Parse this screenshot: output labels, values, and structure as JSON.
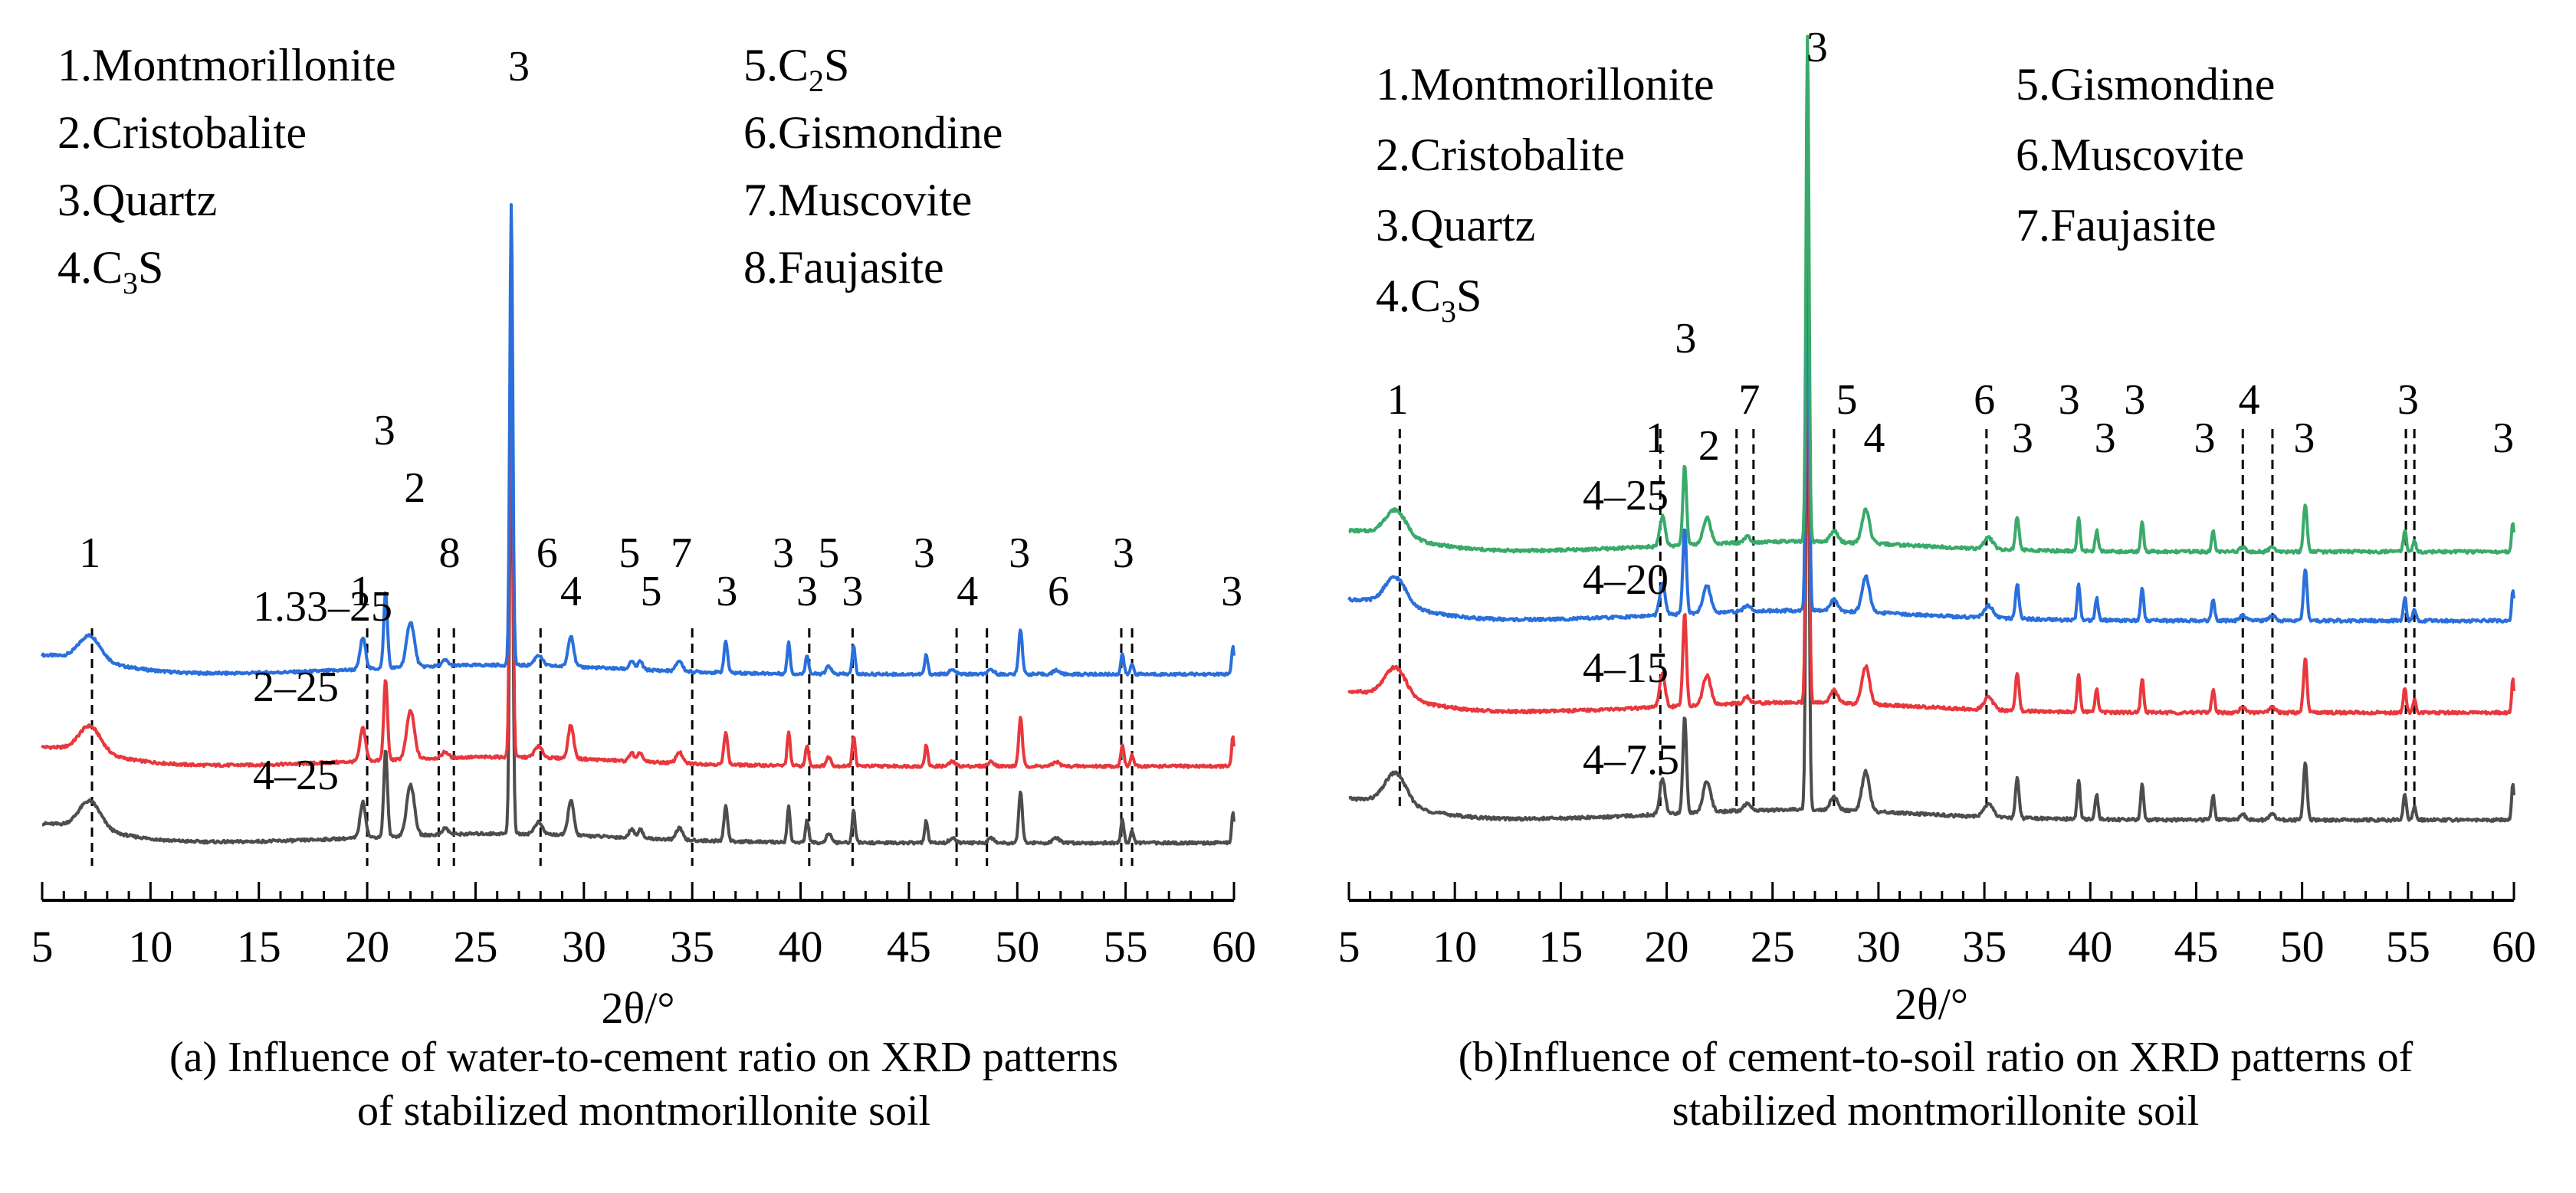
{
  "chart_data": [
    {
      "panel_id": "a",
      "type": "line",
      "caption": "(a) Influence of water-to-cement ratio on XRD patterns\nof stabilized montmorillonite soil",
      "xlabel": "2θ/°",
      "xlim": [
        5,
        60
      ],
      "x_ticks": [
        5,
        10,
        15,
        20,
        25,
        30,
        35,
        40,
        45,
        50,
        55,
        60
      ],
      "phase_legend_col1": [
        "1.Montmorillonite",
        "2.Cristobalite",
        "3.Quartz",
        "4.C3S"
      ],
      "phase_legend_col2": [
        "5.C2S",
        "6.Gismondine",
        "7.Muscovite",
        "8.Faujasite"
      ],
      "series": [
        {
          "name": "1.33–25",
          "color": "#2a6fdb"
        },
        {
          "name": "2–25",
          "color": "#e8383d"
        },
        {
          "name": "4–25",
          "color": "#4d4d4d"
        }
      ],
      "peaks": [
        {
          "x": 7.2,
          "h": 0.35,
          "w": 0.7,
          "lbl": "1"
        },
        {
          "x": 19.8,
          "h": 0.45,
          "w": 0.18,
          "lbl": "1"
        },
        {
          "x": 20.85,
          "h": 1.1,
          "w": 0.12,
          "lbl": "3"
        },
        {
          "x": 22.0,
          "h": 0.65,
          "w": 0.25,
          "lbl": "2"
        },
        {
          "x": 23.6,
          "h": 0.08,
          "w": 0.2,
          "lbl": "8"
        },
        {
          "x": 26.65,
          "h": 6.0,
          "w": 0.1,
          "lbl": "3"
        },
        {
          "x": 27.9,
          "h": 0.15,
          "w": 0.25,
          "lbl": "6"
        },
        {
          "x": 29.4,
          "h": 0.45,
          "w": 0.18,
          "lbl": "4"
        },
        {
          "x": 32.2,
          "h": 0.12,
          "w": 0.15,
          "lbl": "5"
        },
        {
          "x": 32.6,
          "h": 0.12,
          "w": 0.15,
          "lbl": "5"
        },
        {
          "x": 34.4,
          "h": 0.15,
          "w": 0.2,
          "lbl": "7"
        },
        {
          "x": 36.55,
          "h": 0.45,
          "w": 0.12,
          "lbl": "3"
        },
        {
          "x": 39.45,
          "h": 0.45,
          "w": 0.1,
          "lbl": "3"
        },
        {
          "x": 40.3,
          "h": 0.28,
          "w": 0.1,
          "lbl": "3"
        },
        {
          "x": 41.3,
          "h": 0.12,
          "w": 0.15,
          "lbl": "5"
        },
        {
          "x": 42.45,
          "h": 0.4,
          "w": 0.1,
          "lbl": "3"
        },
        {
          "x": 45.8,
          "h": 0.28,
          "w": 0.1,
          "lbl": "3"
        },
        {
          "x": 47.0,
          "h": 0.06,
          "w": 0.2,
          "lbl": "4"
        },
        {
          "x": 48.8,
          "h": 0.06,
          "w": 0.2,
          "lbl": ""
        },
        {
          "x": 50.15,
          "h": 0.65,
          "w": 0.12,
          "lbl": "3"
        },
        {
          "x": 51.8,
          "h": 0.06,
          "w": 0.2,
          "lbl": "6"
        },
        {
          "x": 54.85,
          "h": 0.3,
          "w": 0.1,
          "lbl": "3"
        },
        {
          "x": 55.3,
          "h": 0.15,
          "w": 0.1,
          "lbl": ""
        },
        {
          "x": 59.95,
          "h": 0.4,
          "w": 0.08,
          "lbl": "3"
        }
      ],
      "peak_labels": [
        {
          "x": 7.2,
          "text": "1"
        },
        {
          "x": 19.7,
          "text": "1"
        },
        {
          "x": 20.8,
          "text": "3"
        },
        {
          "x": 22.2,
          "text": "2"
        },
        {
          "x": 23.8,
          "text": "8"
        },
        {
          "x": 27.0,
          "text": "3"
        },
        {
          "x": 28.3,
          "text": "6"
        },
        {
          "x": 29.4,
          "text": "4"
        },
        {
          "x": 32.1,
          "text": "5"
        },
        {
          "x": 33.1,
          "text": "5"
        },
        {
          "x": 34.5,
          "text": "7"
        },
        {
          "x": 36.6,
          "text": "3"
        },
        {
          "x": 39.2,
          "text": "3"
        },
        {
          "x": 40.3,
          "text": "3"
        },
        {
          "x": 41.3,
          "text": "5"
        },
        {
          "x": 42.4,
          "text": "3"
        },
        {
          "x": 45.7,
          "text": "3"
        },
        {
          "x": 47.7,
          "text": "4"
        },
        {
          "x": 50.1,
          "text": "3"
        },
        {
          "x": 51.9,
          "text": "6"
        },
        {
          "x": 54.9,
          "text": "3"
        },
        {
          "x": 59.9,
          "text": "3"
        }
      ],
      "dashed_x": [
        7.3,
        20.0,
        23.3,
        24.0,
        28.0,
        35.0,
        40.4,
        42.4,
        47.2,
        48.6,
        54.8,
        55.3
      ]
    },
    {
      "panel_id": "b",
      "type": "line",
      "caption": "(b)Influence of cement-to-soil ratio on XRD patterns of\nstabilized montmorillonite soil",
      "xlabel": "2θ/°",
      "xlim": [
        5,
        60
      ],
      "x_ticks": [
        5,
        10,
        15,
        20,
        25,
        30,
        35,
        40,
        45,
        50,
        55,
        60
      ],
      "phase_legend_col1": [
        "1.Montmorillonite",
        "2.Cristobalite",
        "3.Quartz",
        "4.C3S"
      ],
      "phase_legend_col2": [
        "5.Gismondine",
        "6.Muscovite",
        "7.Faujasite"
      ],
      "series": [
        {
          "name": "4–25",
          "color": "#3aaa6a"
        },
        {
          "name": "4–20",
          "color": "#2a6fdb"
        },
        {
          "name": "4–15",
          "color": "#e8383d"
        },
        {
          "name": "4–7.5",
          "color": "#4d4d4d"
        }
      ],
      "peaks": [
        {
          "x": 7.2,
          "h": 0.35,
          "w": 0.7,
          "lbl": "1"
        },
        {
          "x": 19.8,
          "h": 0.4,
          "w": 0.18,
          "lbl": "1"
        },
        {
          "x": 20.85,
          "h": 1.1,
          "w": 0.12,
          "lbl": "3"
        },
        {
          "x": 21.9,
          "h": 0.35,
          "w": 0.25,
          "lbl": "2"
        },
        {
          "x": 23.8,
          "h": 0.08,
          "w": 0.2,
          "lbl": "7"
        },
        {
          "x": 26.65,
          "h": 6.0,
          "w": 0.1,
          "lbl": "3"
        },
        {
          "x": 27.9,
          "h": 0.15,
          "w": 0.25,
          "lbl": "5"
        },
        {
          "x": 29.4,
          "h": 0.45,
          "w": 0.25,
          "lbl": "4"
        },
        {
          "x": 35.2,
          "h": 0.15,
          "w": 0.3,
          "lbl": "6"
        },
        {
          "x": 36.55,
          "h": 0.45,
          "w": 0.12,
          "lbl": "3"
        },
        {
          "x": 39.45,
          "h": 0.45,
          "w": 0.1,
          "lbl": "3"
        },
        {
          "x": 40.3,
          "h": 0.28,
          "w": 0.1,
          "lbl": "3"
        },
        {
          "x": 42.45,
          "h": 0.4,
          "w": 0.1,
          "lbl": "3"
        },
        {
          "x": 45.8,
          "h": 0.28,
          "w": 0.1,
          "lbl": "3"
        },
        {
          "x": 47.2,
          "h": 0.06,
          "w": 0.2,
          "lbl": "4"
        },
        {
          "x": 48.6,
          "h": 0.06,
          "w": 0.2,
          "lbl": ""
        },
        {
          "x": 50.15,
          "h": 0.65,
          "w": 0.12,
          "lbl": "3"
        },
        {
          "x": 54.85,
          "h": 0.3,
          "w": 0.1,
          "lbl": "3"
        },
        {
          "x": 55.3,
          "h": 0.15,
          "w": 0.1,
          "lbl": ""
        },
        {
          "x": 59.95,
          "h": 0.4,
          "w": 0.08,
          "lbl": "3"
        }
      ],
      "peak_labels": [
        {
          "x": 7.3,
          "text": "1"
        },
        {
          "x": 19.5,
          "text": "1"
        },
        {
          "x": 20.9,
          "text": "3"
        },
        {
          "x": 22.0,
          "text": "2"
        },
        {
          "x": 23.9,
          "text": "7"
        },
        {
          "x": 27.1,
          "text": "3"
        },
        {
          "x": 28.5,
          "text": "5"
        },
        {
          "x": 29.8,
          "text": "4"
        },
        {
          "x": 35.0,
          "text": "6"
        },
        {
          "x": 36.8,
          "text": "3"
        },
        {
          "x": 39.0,
          "text": "3"
        },
        {
          "x": 40.7,
          "text": "3"
        },
        {
          "x": 42.1,
          "text": "3"
        },
        {
          "x": 45.4,
          "text": "3"
        },
        {
          "x": 47.5,
          "text": "4"
        },
        {
          "x": 50.1,
          "text": "3"
        },
        {
          "x": 55.0,
          "text": "3"
        },
        {
          "x": 59.5,
          "text": "3"
        }
      ],
      "dashed_x": [
        7.4,
        19.7,
        23.3,
        24.1,
        27.9,
        35.1,
        47.2,
        48.6,
        54.9,
        55.3
      ]
    }
  ]
}
